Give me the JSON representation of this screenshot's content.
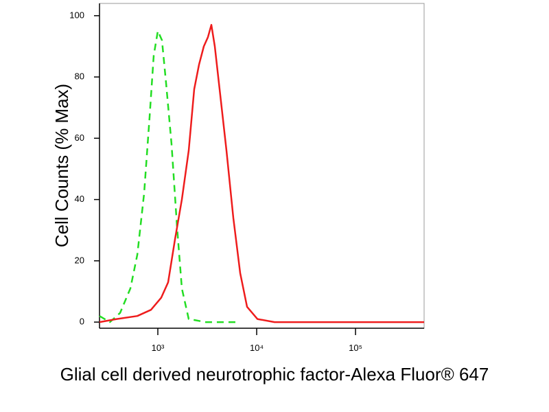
{
  "chart_data": {
    "type": "line",
    "ylabel": "Cell Counts (% Max)",
    "xlabel": "Glial cell derived neurotrophic factor-Alexa Fluor® 647",
    "xscale": "log",
    "xlim": [
      257,
      494000
    ],
    "ylim": [
      -2,
      104
    ],
    "xticks": [
      {
        "value": 1000,
        "label": "10³"
      },
      {
        "value": 10000,
        "label": "10⁴"
      },
      {
        "value": 100000,
        "label": "10⁵"
      }
    ],
    "yticks": [
      0,
      20,
      40,
      60,
      80,
      100
    ],
    "series": [
      {
        "color": "#22dd22",
        "line_style": "dashed",
        "x": [
          257,
          327,
          415,
          528,
          620,
          726,
          826,
          909,
          1000,
          1100,
          1212,
          1377,
          1564,
          1750,
          2054,
          3059,
          4222,
          6290
        ],
        "values": [
          2,
          0,
          3,
          11,
          22,
          42,
          67,
          87,
          95,
          92,
          78,
          58,
          31,
          11,
          1,
          0,
          0,
          0
        ]
      },
      {
        "color": "#ee1c1c",
        "line_style": "solid",
        "x": [
          257,
          383,
          620,
          852,
          1083,
          1271,
          1492,
          1750,
          2054,
          2334,
          2610,
          2917,
          3212,
          3480,
          3771,
          4217,
          4944,
          5801,
          6813,
          7995,
          10170,
          15150,
          75000,
          494000
        ],
        "values": [
          0,
          1,
          2,
          4,
          8,
          13,
          27,
          40,
          56,
          76,
          84,
          90,
          93,
          97,
          90,
          76,
          56,
          34,
          16,
          5,
          1,
          0,
          0,
          0
        ]
      }
    ]
  }
}
